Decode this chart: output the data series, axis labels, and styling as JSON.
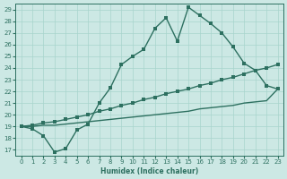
{
  "bg_color": "#cce8e4",
  "grid_color": "#a8d4cc",
  "line_color": "#2d7060",
  "xlabel": "Humidex (Indice chaleur)",
  "xlim": [
    -0.5,
    23.5
  ],
  "ylim": [
    16.5,
    29.5
  ],
  "yticks": [
    17,
    18,
    19,
    20,
    21,
    22,
    23,
    24,
    25,
    26,
    27,
    28,
    29
  ],
  "xticks": [
    0,
    1,
    2,
    3,
    4,
    5,
    6,
    7,
    8,
    9,
    10,
    11,
    12,
    13,
    14,
    15,
    16,
    17,
    18,
    19,
    20,
    21,
    22,
    23
  ],
  "line1_x": [
    0,
    1,
    2,
    3,
    4,
    5,
    6,
    7,
    8,
    9,
    10,
    11,
    12,
    13,
    14,
    15,
    16,
    17,
    18,
    19,
    20,
    21,
    22,
    23
  ],
  "line1_y": [
    19.0,
    18.8,
    18.2,
    16.8,
    17.1,
    18.7,
    19.2,
    21.0,
    22.3,
    24.3,
    25.0,
    25.6,
    27.4,
    28.3,
    26.3,
    29.2,
    28.5,
    27.8,
    27.0,
    25.8,
    24.4,
    23.8,
    22.5,
    22.2
  ],
  "line2_x": [
    0,
    1,
    2,
    3,
    4,
    5,
    6,
    7,
    8,
    9,
    10,
    11,
    12,
    13,
    14,
    15,
    16,
    17,
    18,
    19,
    20,
    21,
    22,
    23
  ],
  "line2_y": [
    19.0,
    19.1,
    19.3,
    19.4,
    19.6,
    19.8,
    20.0,
    20.3,
    20.5,
    20.8,
    21.0,
    21.3,
    21.5,
    21.8,
    22.0,
    22.2,
    22.5,
    22.7,
    23.0,
    23.2,
    23.5,
    23.8,
    24.0,
    24.3
  ],
  "line3_x": [
    0,
    1,
    2,
    3,
    4,
    5,
    6,
    7,
    8,
    9,
    10,
    11,
    12,
    13,
    14,
    15,
    16,
    17,
    18,
    19,
    20,
    21,
    22,
    23
  ],
  "line3_y": [
    19.0,
    19.0,
    19.1,
    19.1,
    19.2,
    19.3,
    19.4,
    19.5,
    19.6,
    19.7,
    19.8,
    19.9,
    20.0,
    20.1,
    20.2,
    20.3,
    20.5,
    20.6,
    20.7,
    20.8,
    21.0,
    21.1,
    21.2,
    22.2
  ],
  "marker_size": 2.5,
  "line_width": 1.0,
  "xlabel_fontsize": 5.5,
  "tick_fontsize": 5.0
}
